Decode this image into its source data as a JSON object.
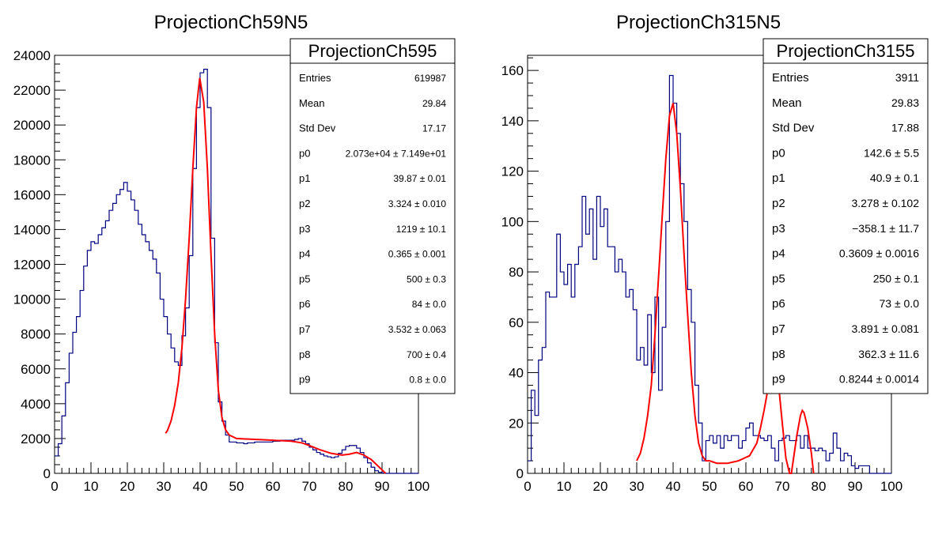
{
  "chart_data": [
    {
      "type": "line",
      "title": "ProjectionCh59N5",
      "x_ticks": [
        0,
        10,
        20,
        30,
        40,
        50,
        60,
        70,
        80,
        90,
        100
      ],
      "y_ticks": [
        0,
        2000,
        4000,
        6000,
        8000,
        10000,
        12000,
        14000,
        16000,
        18000,
        20000,
        22000,
        24000
      ],
      "xlim": [
        0,
        100
      ],
      "ylim": [
        0,
        24000
      ],
      "stats": {
        "name": "ProjectionCh595",
        "rows": [
          {
            "key": "Entries",
            "value": "619987"
          },
          {
            "key": "Mean",
            "value": "29.84"
          },
          {
            "key": "Std Dev",
            "value": "17.17"
          },
          {
            "key": "p0",
            "value": "2.073e+04 ± 7.149e+01"
          },
          {
            "key": "p1",
            "value": "39.87 ± 0.01"
          },
          {
            "key": "p2",
            "value": "3.324 ± 0.010"
          },
          {
            "key": "p3",
            "value": "1219 ± 10.1"
          },
          {
            "key": "p4",
            "value": "0.365 ± 0.001"
          },
          {
            "key": "p5",
            "value": "500 ± 0.3"
          },
          {
            "key": "p6",
            "value": "84 ± 0.0"
          },
          {
            "key": "p7",
            "value": "3.532 ± 0.063"
          },
          {
            "key": "p8",
            "value": "700 ± 0.4"
          },
          {
            "key": "p9",
            "value": "0.8 ± 0.0"
          }
        ]
      },
      "histogram": {
        "bin_width": 1,
        "x_start": 0,
        "values": [
          1000,
          1700,
          3300,
          5200,
          6900,
          8100,
          9000,
          10500,
          11900,
          12800,
          13300,
          13200,
          13700,
          14100,
          14500,
          15100,
          15500,
          16000,
          16300,
          16700,
          16200,
          15700,
          15100,
          14300,
          13700,
          13300,
          12800,
          12300,
          11500,
          10000,
          9000,
          8000,
          7200,
          6400,
          6200,
          7900,
          9500,
          12500,
          17500,
          21000,
          23000,
          23200,
          21000,
          13500,
          7500,
          4100,
          3000,
          2200,
          1800,
          1800,
          1750,
          1750,
          1700,
          1750,
          1750,
          1800,
          1800,
          1800,
          1800,
          1800,
          1850,
          1850,
          1900,
          1900,
          1900,
          1900,
          1950,
          2000,
          1850,
          1700,
          1500,
          1350,
          1200,
          1100,
          1000,
          950,
          900,
          950,
          1150,
          1350,
          1550,
          1600,
          1600,
          1450,
          1200,
          900,
          600,
          350,
          150,
          60,
          20,
          0,
          0,
          0,
          0,
          0,
          0,
          0,
          0,
          0
        ]
      },
      "fit": {
        "x": [
          30.5,
          31,
          32,
          33,
          34,
          35,
          36,
          37,
          38,
          39,
          39.9,
          41,
          42,
          43,
          44,
          45,
          46,
          47,
          48,
          50,
          52,
          55,
          58,
          62,
          65,
          68,
          70,
          73,
          76,
          79,
          81,
          83,
          85,
          87,
          89,
          91
        ],
        "y": [
          2300,
          2450,
          3000,
          3900,
          5200,
          7200,
          10000,
          13500,
          17500,
          21000,
          22700,
          21300,
          17500,
          12500,
          8000,
          4800,
          3200,
          2500,
          2200,
          2000,
          1980,
          1950,
          1920,
          1880,
          1850,
          1750,
          1600,
          1350,
          1150,
          1050,
          1100,
          1200,
          1050,
          800,
          400,
          0
        ]
      }
    },
    {
      "type": "line",
      "title": "ProjectionCh315N5",
      "x_ticks": [
        0,
        10,
        20,
        30,
        40,
        50,
        60,
        70,
        80,
        90,
        100
      ],
      "y_ticks": [
        0,
        20,
        40,
        60,
        80,
        100,
        120,
        140,
        160
      ],
      "xlim": [
        0,
        100
      ],
      "ylim": [
        0,
        166
      ],
      "stats": {
        "name": "ProjectionCh3155",
        "rows": [
          {
            "key": "Entries",
            "value": "3911"
          },
          {
            "key": "Mean",
            "value": "29.83"
          },
          {
            "key": "Std Dev",
            "value": "17.88"
          },
          {
            "key": "p0",
            "value": "142.6 ± 5.5"
          },
          {
            "key": "p1",
            "value": "40.9 ± 0.1"
          },
          {
            "key": "p2",
            "value": "3.278 ± 0.102"
          },
          {
            "key": "p3",
            "value": "−358.1 ± 11.7"
          },
          {
            "key": "p4",
            "value": "0.3609 ± 0.0016"
          },
          {
            "key": "p5",
            "value": "250 ± 0.1"
          },
          {
            "key": "p6",
            "value": "73 ± 0.0"
          },
          {
            "key": "p7",
            "value": "3.891 ± 0.081"
          },
          {
            "key": "p8",
            "value": "362.3 ± 11.6"
          },
          {
            "key": "p9",
            "value": "0.8244 ± 0.0014"
          }
        ]
      },
      "histogram": {
        "bin_width": 1,
        "x_start": 0,
        "values": [
          5,
          33,
          23,
          45,
          50,
          72,
          70,
          70,
          95,
          80,
          75,
          83,
          70,
          83,
          90,
          110,
          95,
          105,
          85,
          110,
          98,
          105,
          90,
          90,
          80,
          85,
          80,
          70,
          73,
          65,
          45,
          50,
          43,
          63,
          40,
          70,
          33,
          58,
          100,
          158,
          147,
          135,
          115,
          100,
          73,
          60,
          35,
          20,
          5,
          13,
          15,
          12,
          15,
          10,
          15,
          13,
          15,
          15,
          10,
          13,
          18,
          20,
          15,
          15,
          14,
          13,
          15,
          10,
          5,
          13,
          14,
          15,
          13,
          13,
          15,
          10,
          15,
          10,
          10,
          9,
          10,
          9,
          5,
          8,
          16,
          10,
          5,
          8,
          7,
          3,
          2,
          3,
          3,
          3,
          0,
          0,
          0,
          0,
          0,
          0
        ]
      },
      "fit": {
        "x": [
          30,
          31,
          32,
          33,
          34,
          35,
          36,
          37,
          38,
          39,
          40,
          41,
          42,
          43,
          44,
          45,
          46,
          47,
          48,
          49,
          50,
          52,
          55,
          58,
          61,
          63,
          64,
          65,
          66,
          67,
          68,
          69,
          70,
          71,
          72,
          72.5,
          73,
          74,
          75,
          75.5,
          76,
          77,
          78,
          78.6
        ],
        "y": [
          5,
          8,
          14,
          23,
          35,
          55,
          78,
          102,
          125,
          142,
          147,
          135,
          113,
          87,
          63,
          40,
          23,
          12,
          7,
          5,
          5,
          4,
          4,
          5,
          7,
          12,
          18,
          25,
          33,
          42,
          44,
          35,
          20,
          6,
          0,
          0,
          5,
          15,
          23,
          25,
          24,
          18,
          8,
          0
        ]
      }
    }
  ]
}
